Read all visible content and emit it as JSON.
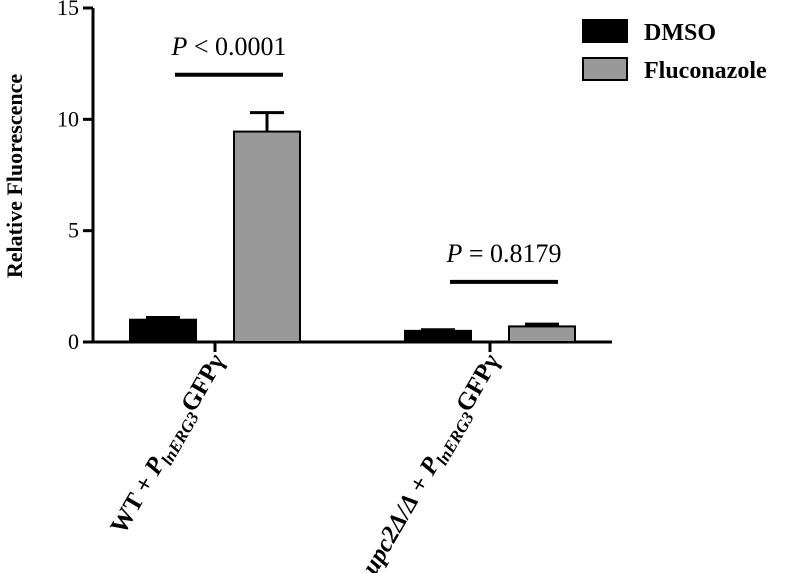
{
  "chart_data": {
    "type": "bar",
    "ylabel": "Relative Fluorescence",
    "ylim": [
      0,
      15
    ],
    "yticks": [
      0,
      5,
      10,
      15
    ],
    "grid": false,
    "legend_position": "top-right",
    "categories": [
      {
        "prefix": "WT + P",
        "subscript": "lnERG3",
        "suffix": "GFPγ"
      },
      {
        "prefix": "upc2Δ/Δ + P",
        "subscript": "lnERG3",
        "suffix": "GFPγ"
      }
    ],
    "series": [
      {
        "name": "DMSO",
        "color": "#000000",
        "values": [
          1.0,
          0.5
        ],
        "errors": [
          0.1,
          0.05
        ]
      },
      {
        "name": "Fluconazole",
        "color": "#999999",
        "values": [
          9.45,
          0.7
        ],
        "errors": [
          0.85,
          0.1
        ]
      }
    ],
    "annotations": [
      {
        "category_index": 0,
        "label": "P",
        "text": "< 0.0001",
        "y": 12.0
      },
      {
        "category_index": 1,
        "label": "P",
        "text": "= 0.8179",
        "y": 2.7
      }
    ]
  }
}
